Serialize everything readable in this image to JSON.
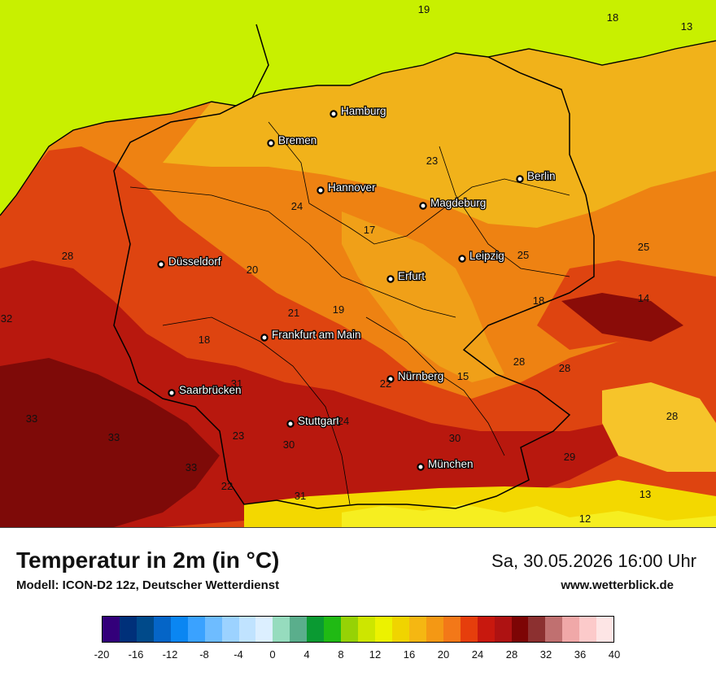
{
  "title": "Temperatur in 2m (in °C)",
  "model": "Modell: ICON-D2 12z, Deutscher Wetterdienst",
  "datetime": "Sa, 30.05.2026 16:00 Uhr",
  "website": "www.wetterblick.de",
  "colors": {
    "sea": "#c8f000",
    "north": "#f1b21a",
    "mid": "#ee8212",
    "hot": "#de4410",
    "very_hot": "#b8180e",
    "hottest": "#7e0a08",
    "alps": "#f3d800"
  },
  "cities": [
    {
      "name": "Hamburg"
    },
    {
      "name": "Bremen"
    },
    {
      "name": "Berlin"
    },
    {
      "name": "Hannover"
    },
    {
      "name": "Magdeburg"
    },
    {
      "name": "Düsseldorf"
    },
    {
      "name": "Leipzig"
    },
    {
      "name": "Erfurt"
    },
    {
      "name": "Frankfurt am Main"
    },
    {
      "name": "Nürnberg"
    },
    {
      "name": "Saarbrücken"
    },
    {
      "name": "Stuttgart"
    },
    {
      "name": "München"
    }
  ],
  "values": [
    "19",
    "18",
    "13",
    "23",
    "24",
    "17",
    "28",
    "25",
    "20",
    "25",
    "32",
    "21",
    "19",
    "18",
    "14",
    "18",
    "31",
    "28",
    "28",
    "22",
    "15",
    "33",
    "24",
    "33",
    "23",
    "30",
    "30",
    "28",
    "29",
    "33",
    "22",
    "31",
    "13",
    "12"
  ],
  "legend": {
    "ticks": [
      "-20",
      "-16",
      "-12",
      "-8",
      "-4",
      "0",
      "4",
      "8",
      "12",
      "16",
      "20",
      "24",
      "28",
      "32",
      "36",
      "40"
    ],
    "colors": [
      "#33007a",
      "#00307a",
      "#004a8a",
      "#0565c7",
      "#0a86f2",
      "#3aa2ff",
      "#6ebcff",
      "#9cd2ff",
      "#c0e3ff",
      "#dcefff",
      "#96dcbe",
      "#5aae8c",
      "#0a9a32",
      "#20ba14",
      "#96d205",
      "#cde600",
      "#ecf200",
      "#f0d400",
      "#f5b712",
      "#f49814",
      "#f37818",
      "#e63e0c",
      "#c8180e",
      "#ae1212",
      "#7d0505",
      "#8c3030",
      "#c07070",
      "#f0a8a8",
      "#fccaca",
      "#fde5e5"
    ]
  }
}
